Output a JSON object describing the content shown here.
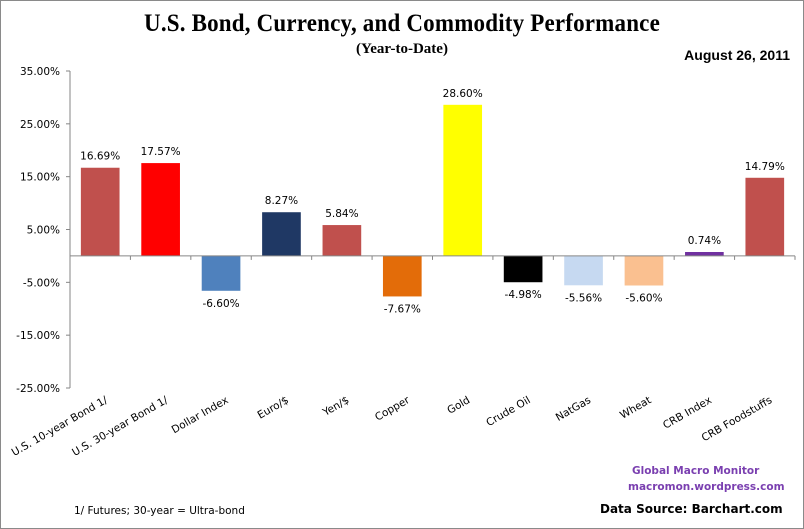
{
  "chart_data": {
    "type": "bar",
    "title": "U.S. Bond, Currency, and Commodity Performance",
    "subtitle": "(Year-to-Date)",
    "date": "August 26, 2011",
    "xlabel": "",
    "ylabel": "",
    "ylim": [
      -25,
      35
    ],
    "yticks": [
      35,
      25,
      15,
      5,
      -5,
      -15,
      -25
    ],
    "ytick_labels": [
      "35.00%",
      "25.00%",
      "15.00%",
      "5.00%",
      "-5.00%",
      "-15.00%",
      "-25.00%"
    ],
    "grid": false,
    "legend": "none",
    "categories": [
      "U.S. 10-year Bond 1/",
      "U.S. 30-year Bond 1/",
      "Dollar Index",
      "Euro/$",
      "Yen/$",
      "Copper",
      "Gold",
      "Crude Oil",
      "NatGas",
      "Wheat",
      "CRB Index",
      "CRB Foodstuffs"
    ],
    "values": [
      16.69,
      17.57,
      -6.6,
      8.27,
      5.84,
      -7.67,
      28.6,
      -4.98,
      -5.56,
      -5.6,
      0.74,
      14.79
    ],
    "data_labels": [
      "16.69%",
      "17.57%",
      "-6.60%",
      "8.27%",
      "5.84%",
      "-7.67%",
      "28.60%",
      "-4.98%",
      "-5.56%",
      "-5.60%",
      "0.74%",
      "14.79%"
    ],
    "colors": [
      "#c0504d",
      "#ff0000",
      "#4f81bd",
      "#1f3864",
      "#c0504d",
      "#e36c09",
      "#ffff00",
      "#000000",
      "#c6d9f1",
      "#fac090",
      "#7030a0",
      "#c0504d"
    ]
  },
  "footnote": "1/   Futures; 30-year = Ultra-bond",
  "branding": {
    "line1": "Global  Macro  Monitor",
    "line2": "macromon.wordpress.com",
    "color": "#7a3fb0"
  },
  "source": "Data Source:  Barchart.com"
}
